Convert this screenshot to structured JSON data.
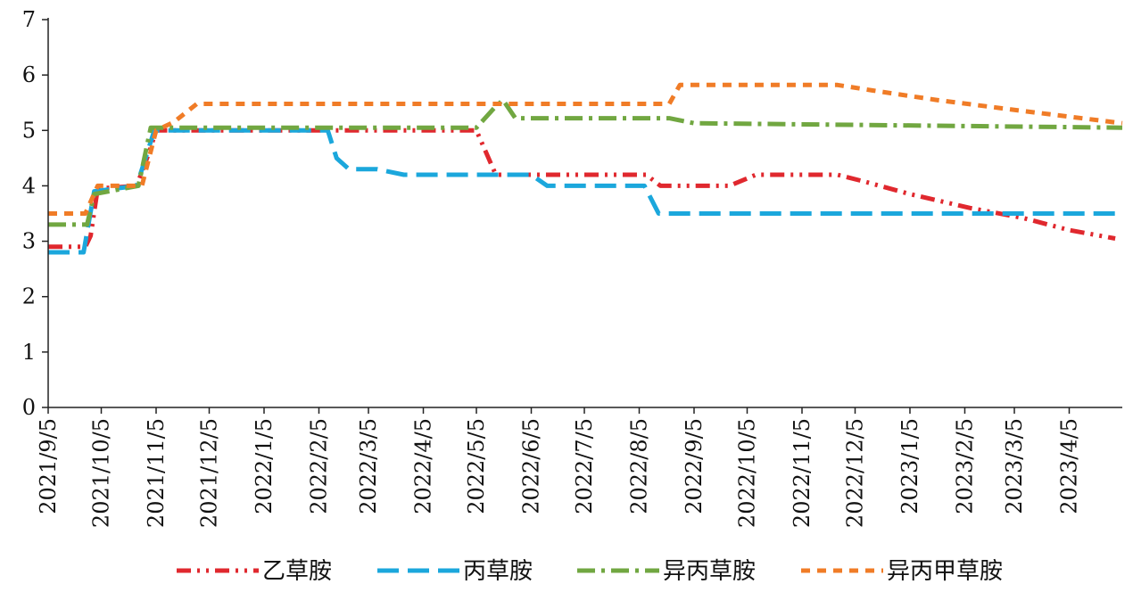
{
  "chart_data": {
    "type": "line",
    "title": "",
    "xlabel": "",
    "ylabel": "",
    "ylim": [
      0,
      7
    ],
    "y_ticks": [
      "0",
      "1",
      "2",
      "3",
      "4",
      "5",
      "6",
      "7"
    ],
    "x_range": [
      "2021-09-05",
      "2023-05-05"
    ],
    "x_ticks": [
      {
        "date": "2021-09-05",
        "label": "2021/9/5"
      },
      {
        "date": "2021-10-05",
        "label": "2021/10/5"
      },
      {
        "date": "2021-11-05",
        "label": "2021/11/5"
      },
      {
        "date": "2021-12-05",
        "label": "2021/12/5"
      },
      {
        "date": "2022-01-05",
        "label": "2022/1/5"
      },
      {
        "date": "2022-02-05",
        "label": "2022/2/5"
      },
      {
        "date": "2022-03-05",
        "label": "2022/3/5"
      },
      {
        "date": "2022-04-05",
        "label": "2022/4/5"
      },
      {
        "date": "2022-05-05",
        "label": "2022/5/5"
      },
      {
        "date": "2022-06-05",
        "label": "2022/6/5"
      },
      {
        "date": "2022-07-05",
        "label": "2022/7/5"
      },
      {
        "date": "2022-08-05",
        "label": "2022/8/5"
      },
      {
        "date": "2022-09-05",
        "label": "2022/9/5"
      },
      {
        "date": "2022-10-05",
        "label": "2022/10/5"
      },
      {
        "date": "2022-11-05",
        "label": "2022/11/5"
      },
      {
        "date": "2022-12-05",
        "label": "2022/12/5"
      },
      {
        "date": "2023-01-05",
        "label": "2023/1/5"
      },
      {
        "date": "2023-02-05",
        "label": "2023/2/5"
      },
      {
        "date": "2023-03-05",
        "label": "2023/3/5"
      },
      {
        "date": "2023-04-05",
        "label": "2023/4/5"
      }
    ],
    "grid": false,
    "legend_position": "bottom",
    "series": [
      {
        "name": "乙草胺",
        "color": "#e0282e",
        "dash": "dash-dot-dot",
        "points": [
          [
            "2021-09-05",
            2.9
          ],
          [
            "2021-09-26",
            2.9
          ],
          [
            "2021-09-29",
            3.1
          ],
          [
            "2021-10-03",
            3.95
          ],
          [
            "2021-10-25",
            4.0
          ],
          [
            "2021-11-01",
            4.6
          ],
          [
            "2021-11-05",
            5.0
          ],
          [
            "2022-02-08",
            5.0
          ],
          [
            "2022-05-05",
            5.0
          ],
          [
            "2022-05-16",
            4.2
          ],
          [
            "2022-08-09",
            4.2
          ],
          [
            "2022-08-17",
            4.0
          ],
          [
            "2022-09-25",
            4.0
          ],
          [
            "2022-10-10",
            4.2
          ],
          [
            "2022-11-25",
            4.2
          ],
          [
            "2022-12-10",
            4.08
          ],
          [
            "2023-01-05",
            3.85
          ],
          [
            "2023-02-08",
            3.6
          ],
          [
            "2023-03-10",
            3.42
          ],
          [
            "2023-04-05",
            3.2
          ],
          [
            "2023-05-01",
            3.05
          ]
        ]
      },
      {
        "name": "丙草胺",
        "color": "#1ba7dc",
        "dash": "dash",
        "points": [
          [
            "2021-09-05",
            2.8
          ],
          [
            "2021-09-25",
            2.8
          ],
          [
            "2021-10-01",
            3.9
          ],
          [
            "2021-10-25",
            4.0
          ],
          [
            "2021-11-04",
            5.0
          ],
          [
            "2022-02-10",
            5.0
          ],
          [
            "2022-02-15",
            4.5
          ],
          [
            "2022-02-22",
            4.3
          ],
          [
            "2022-03-10",
            4.3
          ],
          [
            "2022-03-25",
            4.2
          ],
          [
            "2022-06-05",
            4.2
          ],
          [
            "2022-06-14",
            4.0
          ],
          [
            "2022-08-08",
            4.0
          ],
          [
            "2022-08-16",
            3.5
          ],
          [
            "2023-05-05",
            3.5
          ]
        ]
      },
      {
        "name": "异丙草胺",
        "color": "#71a741",
        "dash": "dash-dot",
        "points": [
          [
            "2021-09-05",
            3.3
          ],
          [
            "2021-09-27",
            3.3
          ],
          [
            "2021-10-01",
            3.85
          ],
          [
            "2021-10-26",
            4.0
          ],
          [
            "2021-11-02",
            5.05
          ],
          [
            "2022-05-05",
            5.05
          ],
          [
            "2022-05-15",
            5.4
          ],
          [
            "2022-05-20",
            5.55
          ],
          [
            "2022-05-27",
            5.22
          ],
          [
            "2022-08-22",
            5.22
          ],
          [
            "2022-09-05",
            5.13
          ],
          [
            "2023-05-05",
            5.05
          ]
        ]
      },
      {
        "name": "异丙甲草胺",
        "color": "#f07c27",
        "dash": "dot",
        "points": [
          [
            "2021-09-05",
            3.5
          ],
          [
            "2021-09-26",
            3.5
          ],
          [
            "2021-10-03",
            4.0
          ],
          [
            "2021-10-28",
            4.0
          ],
          [
            "2021-11-05",
            5.0
          ],
          [
            "2021-11-15",
            5.15
          ],
          [
            "2021-11-28",
            5.48
          ],
          [
            "2022-08-22",
            5.48
          ],
          [
            "2022-08-28",
            5.82
          ],
          [
            "2022-11-25",
            5.82
          ],
          [
            "2022-12-15",
            5.72
          ],
          [
            "2023-01-20",
            5.55
          ],
          [
            "2023-03-10",
            5.35
          ],
          [
            "2023-05-05",
            5.13
          ]
        ]
      }
    ]
  }
}
